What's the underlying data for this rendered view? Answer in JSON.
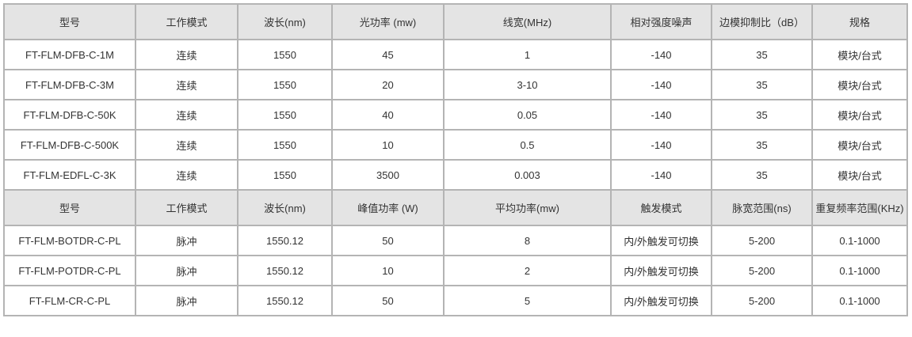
{
  "sections": [
    {
      "header": [
        "型号",
        "工作模式",
        "波长(nm)",
        "光功率 (mw)",
        "线宽(MHz)",
        "相对强度噪声",
        "边模抑制比（dB）",
        "规格"
      ],
      "rows": [
        [
          "FT-FLM-DFB-C-1M",
          "连续",
          "1550",
          "45",
          "1",
          "-140",
          "35",
          "模块/台式"
        ],
        [
          "FT-FLM-DFB-C-3M",
          "连续",
          "1550",
          "20",
          "3-10",
          "-140",
          "35",
          "模块/台式"
        ],
        [
          "FT-FLM-DFB-C-50K",
          "连续",
          "1550",
          "40",
          "0.05",
          "-140",
          "35",
          "模块/台式"
        ],
        [
          "FT-FLM-DFB-C-500K",
          "连续",
          "1550",
          "10",
          "0.5",
          "-140",
          "35",
          "模块/台式"
        ],
        [
          "FT-FLM-EDFL-C-3K",
          "连续",
          "1550",
          "3500",
          "0.003",
          "-140",
          "35",
          "模块/台式"
        ]
      ]
    },
    {
      "header": [
        "型号",
        "工作模式",
        "波长(nm)",
        "峰值功率 (W)",
        "平均功率(mw)",
        "触发模式",
        "脉宽范围(ns)",
        "重复频率范围(KHz)"
      ],
      "rows": [
        [
          "FT-FLM-BOTDR-C-PL",
          "脉冲",
          "1550.12",
          "50",
          "8",
          "内/外触发可切换",
          "5-200",
          "0.1-1000"
        ],
        [
          "FT-FLM-POTDR-C-PL",
          "脉冲",
          "1550.12",
          "10",
          "2",
          "内/外触发可切换",
          "5-200",
          "0.1-1000"
        ],
        [
          "FT-FLM-CR-C-PL",
          "脉冲",
          "1550.12",
          "50",
          "5",
          "内/外触发可切换",
          "5-200",
          "0.1-1000"
        ]
      ]
    }
  ]
}
